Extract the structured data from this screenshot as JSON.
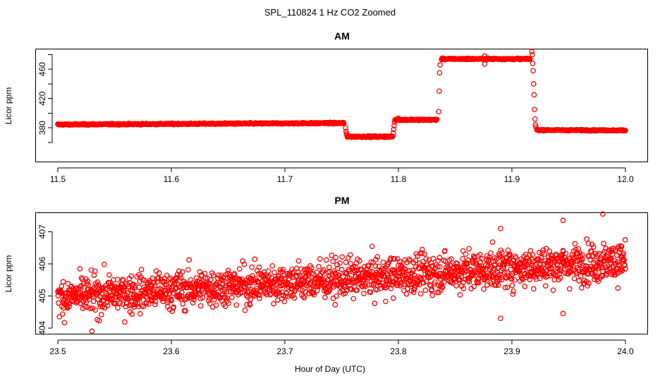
{
  "figure": {
    "title": "SPL_110824  1 Hz CO2 Zoomed",
    "xlabel": "Hour of Day (UTC)"
  },
  "chart_data": [
    {
      "type": "scatter",
      "title": "AM",
      "xlabel": "",
      "ylabel": "Licor ppm",
      "xlim": [
        11.5,
        12.0
      ],
      "ylim": [
        333,
        488
      ],
      "xticks": [
        "11.5",
        "11.6",
        "11.7",
        "11.8",
        "11.9",
        "12.0"
      ],
      "yticks": [
        "380",
        "420",
        "460"
      ],
      "yticks_minor": [
        360,
        400,
        440,
        480
      ],
      "color": "#ff0000",
      "marker": "open-circle",
      "segments": [
        {
          "x_start": 11.5,
          "x_end": 11.752,
          "y_start": 384.5,
          "y_end": 386.5,
          "noise": 1.2
        },
        {
          "x_start": 11.755,
          "x_end": 11.795,
          "y_start": 368,
          "y_end": 368,
          "noise": 1.2
        },
        {
          "x_start": 11.797,
          "x_end": 11.834,
          "y_start": 391,
          "y_end": 391,
          "noise": 1.2
        },
        {
          "x_start": 11.838,
          "x_end": 11.916,
          "y_start": 474,
          "y_end": 474,
          "noise": 1.2
        },
        {
          "x_start": 11.922,
          "x_end": 12.0,
          "y_start": 377,
          "y_end": 376.5,
          "noise": 1.0
        }
      ],
      "transitions": [
        {
          "x": 11.7535,
          "y": [
            380,
            375,
            372,
            370
          ]
        },
        {
          "x": 11.7955,
          "y": [
            373,
            378,
            383,
            388
          ]
        },
        {
          "x": 11.8355,
          "y": [
            402,
            430,
            455,
            466
          ]
        },
        {
          "x": 11.9175,
          "y": [
            484,
            480,
            468,
            458,
            440,
            425,
            405,
            392,
            384,
            381
          ]
        }
      ],
      "outliers": [
        {
          "x": 11.876,
          "y": 467
        },
        {
          "x": 11.876,
          "y": 478
        },
        {
          "x": 11.8,
          "y": 393
        }
      ]
    },
    {
      "type": "scatter",
      "title": "PM",
      "xlabel": "",
      "ylabel": "Licor ppm",
      "xlim": [
        23.5,
        24.0
      ],
      "ylim": [
        403.8,
        407.6
      ],
      "xticks": [
        "23.5",
        "23.6",
        "23.7",
        "23.8",
        "23.9",
        "24.0"
      ],
      "yticks": [
        "404",
        "405",
        "406",
        "407"
      ],
      "color": "#ff0000",
      "marker": "open-circle",
      "trend": {
        "x_start": 23.5,
        "x_end": 24.0,
        "y_start": 404.95,
        "y_end": 406.1,
        "noise": 0.42,
        "n_points": 1800
      },
      "extremes": [
        {
          "x": 23.98,
          "y": 407.55
        },
        {
          "x": 23.945,
          "y": 407.35
        },
        {
          "x": 23.89,
          "y": 407.1
        },
        {
          "x": 23.53,
          "y": 403.9
        },
        {
          "x": 23.89,
          "y": 404.3
        },
        {
          "x": 23.945,
          "y": 404.45
        }
      ]
    }
  ]
}
